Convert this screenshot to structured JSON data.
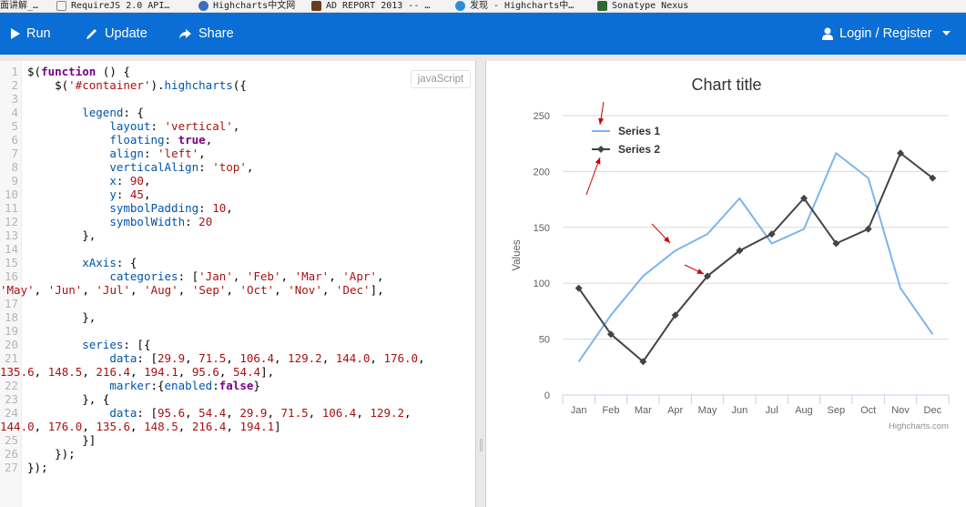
{
  "bookmarks": [
    {
      "label": "面讲解_…",
      "color": "#ffffff"
    },
    {
      "label": "RequireJS 2.0 API…",
      "color": "#ffffff"
    },
    {
      "label": "Highcharts中文网",
      "color": "#3a6fc2"
    },
    {
      "label": "AD REPORT 2013 -- …",
      "color": "#6a3b1e"
    },
    {
      "label": "发现 - Highcharts中…",
      "color": "#2b8fd6"
    },
    {
      "label": "Sonatype Nexus",
      "color": "#2f6a2f"
    }
  ],
  "toolbar": {
    "run_label": "Run",
    "update_label": "Update",
    "share_label": "Share",
    "login_label": "Login / Register"
  },
  "editor": {
    "language_badge": "javaScript",
    "line_numbers": [
      "1",
      "2",
      "3",
      "4",
      "5",
      "6",
      "7",
      "8",
      "9",
      "10",
      "11",
      "12",
      "13",
      "14",
      "15",
      "16",
      "",
      "17",
      "18",
      "19",
      "20",
      "21",
      "",
      "22",
      "23",
      "24",
      "",
      "25",
      "26",
      "27"
    ]
  },
  "chart_data": {
    "type": "line",
    "title": "Chart title",
    "ylabel": "Values",
    "xlabel": "",
    "categories": [
      "Jan",
      "Feb",
      "Mar",
      "Apr",
      "May",
      "Jun",
      "Jul",
      "Aug",
      "Sep",
      "Oct",
      "Nov",
      "Dec"
    ],
    "ylim": [
      0,
      250
    ],
    "yticks": [
      0,
      50,
      100,
      150,
      200,
      250
    ],
    "grid": true,
    "legend_placement": "top-left",
    "credits": "Highcharts.com",
    "series": [
      {
        "name": "Series 1",
        "values": [
          29.9,
          71.5,
          106.4,
          129.2,
          144.0,
          176.0,
          135.6,
          148.5,
          216.4,
          194.1,
          95.6,
          54.4
        ],
        "color": "#7cb5ec",
        "marker": false
      },
      {
        "name": "Series 2",
        "values": [
          95.6,
          54.4,
          29.9,
          71.5,
          106.4,
          129.2,
          144.0,
          176.0,
          135.6,
          148.5,
          216.4,
          194.1
        ],
        "color": "#434348",
        "marker": true
      }
    ],
    "annotation_arrow_color": "#cc0000"
  }
}
